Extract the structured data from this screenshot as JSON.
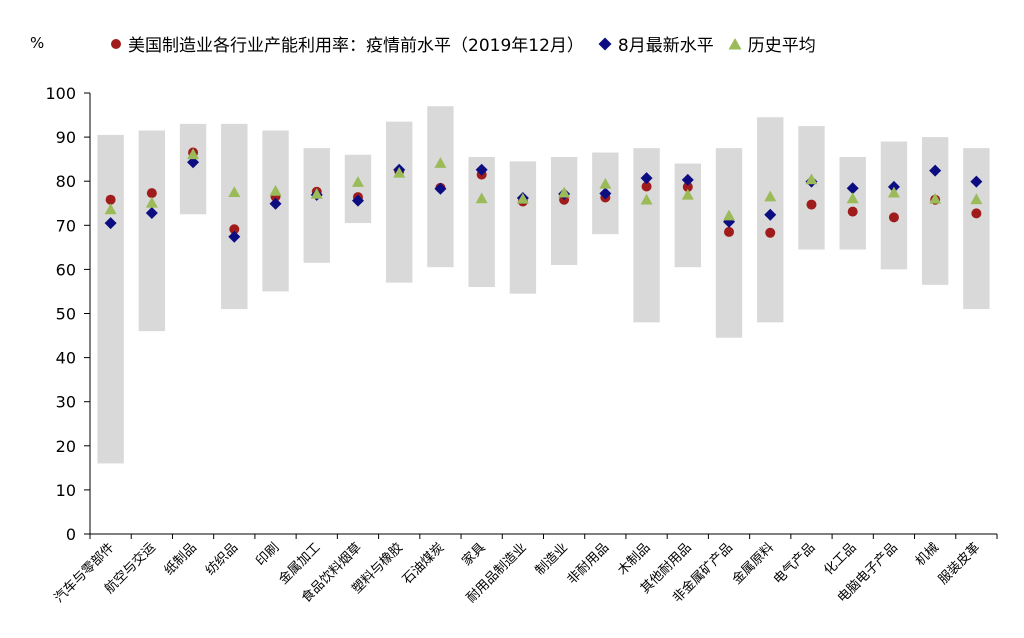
{
  "chart_data": {
    "type": "scatter",
    "title": "",
    "unit": "%",
    "ylim": [
      0,
      100
    ],
    "yticks": [
      0,
      10,
      20,
      30,
      40,
      50,
      60,
      70,
      80,
      90,
      100
    ],
    "categories": [
      "汽车与零部件",
      "航空与交运",
      "纸制品",
      "纺织品",
      "印刷",
      "金属加工",
      "食品饮料烟草",
      "塑料与橡胶",
      "石油煤炭",
      "家具",
      "耐用品制造业",
      "制造业",
      "非耐用品",
      "木制品",
      "其他耐用品",
      "非金属矿产品",
      "金属原料",
      "电气产品",
      "化工品",
      "电脑电子产品",
      "机械",
      "服装皮革"
    ],
    "range": {
      "low": [
        16,
        46,
        72.5,
        51,
        55,
        61.5,
        70.5,
        57,
        60.5,
        56,
        54.5,
        61,
        68,
        48,
        60.5,
        44.5,
        48,
        64.5,
        64.5,
        60,
        56.5,
        51
      ],
      "high": [
        90.5,
        91.5,
        93,
        93,
        91.5,
        87.5,
        86,
        93.5,
        97,
        85.5,
        84.5,
        85.5,
        86.5,
        87.5,
        84,
        87.5,
        94.5,
        92.5,
        85.5,
        89,
        90,
        87.5
      ],
      "color": "#d9d9d9"
    },
    "series": [
      {
        "name": "美国制造业各行业产能利用率：疫情前水平（2019年12月）",
        "marker": "circle",
        "color": "#a01c1c",
        "values": [
          75.8,
          77.3,
          86.5,
          69.1,
          76.5,
          77.6,
          76.4,
          82.3,
          78.5,
          81.5,
          75.4,
          75.8,
          76.3,
          78.8,
          78.7,
          68.5,
          68.3,
          74.7,
          73.1,
          71.8,
          75.8,
          72.7
        ]
      },
      {
        "name": "8月最新水平",
        "marker": "diamond",
        "color": "#0d0d82",
        "values": [
          70.5,
          72.8,
          84.3,
          67.4,
          74.9,
          76.9,
          75.6,
          82.6,
          78.3,
          82.6,
          76.2,
          77.1,
          77.2,
          80.7,
          80.3,
          70.8,
          72.4,
          79.9,
          78.4,
          78.7,
          82.4,
          79.9
        ]
      },
      {
        "name": "历史平均",
        "marker": "triangle",
        "color": "#9bbb59",
        "values": [
          73.6,
          75.1,
          86.1,
          77.5,
          77.8,
          77.1,
          79.8,
          81.9,
          84.1,
          76.1,
          76.0,
          77.4,
          79.4,
          75.8,
          76.9,
          72.2,
          76.5,
          80.4,
          76.1,
          77.4,
          76.0,
          75.9
        ]
      }
    ],
    "legend_position": "top",
    "grid": false
  }
}
